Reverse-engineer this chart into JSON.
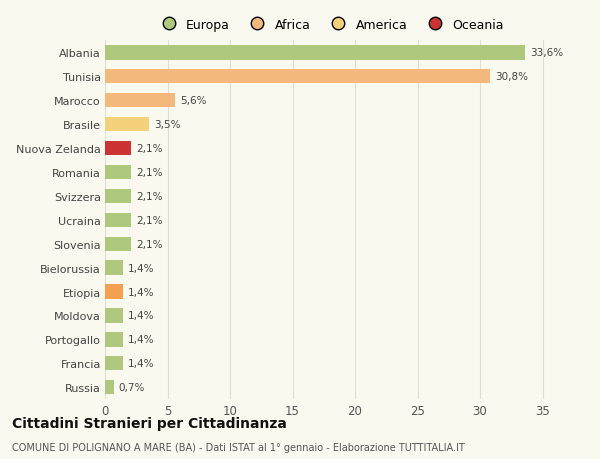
{
  "countries": [
    "Albania",
    "Tunisia",
    "Marocco",
    "Brasile",
    "Nuova Zelanda",
    "Romania",
    "Svizzera",
    "Ucraina",
    "Slovenia",
    "Bielorussia",
    "Etiopia",
    "Moldova",
    "Portogallo",
    "Francia",
    "Russia"
  ],
  "values": [
    33.6,
    30.8,
    5.6,
    3.5,
    2.1,
    2.1,
    2.1,
    2.1,
    2.1,
    1.4,
    1.4,
    1.4,
    1.4,
    1.4,
    0.7
  ],
  "labels": [
    "33,6%",
    "30,8%",
    "5,6%",
    "3,5%",
    "2,1%",
    "2,1%",
    "2,1%",
    "2,1%",
    "2,1%",
    "1,4%",
    "1,4%",
    "1,4%",
    "1,4%",
    "1,4%",
    "0,7%"
  ],
  "colors": [
    "#aec97e",
    "#f2b87c",
    "#f2b87c",
    "#f5d07a",
    "#cc3333",
    "#aec97e",
    "#aec97e",
    "#aec97e",
    "#aec97e",
    "#aec97e",
    "#f5a050",
    "#aec97e",
    "#aec97e",
    "#aec97e",
    "#aec97e"
  ],
  "legend_labels": [
    "Europa",
    "Africa",
    "America",
    "Oceania"
  ],
  "legend_colors": [
    "#aec97e",
    "#f2b87c",
    "#f5d07a",
    "#cc3333"
  ],
  "title": "Cittadini Stranieri per Cittadinanza",
  "subtitle": "COMUNE DI POLIGNANO A MARE (BA) - Dati ISTAT al 1° gennaio - Elaborazione TUTTITALIA.IT",
  "xlim": [
    0,
    36
  ],
  "xticks": [
    0,
    5,
    10,
    15,
    20,
    25,
    30,
    35
  ],
  "bg_color": "#f9f9f0",
  "grid_color": "#e0e0d0"
}
